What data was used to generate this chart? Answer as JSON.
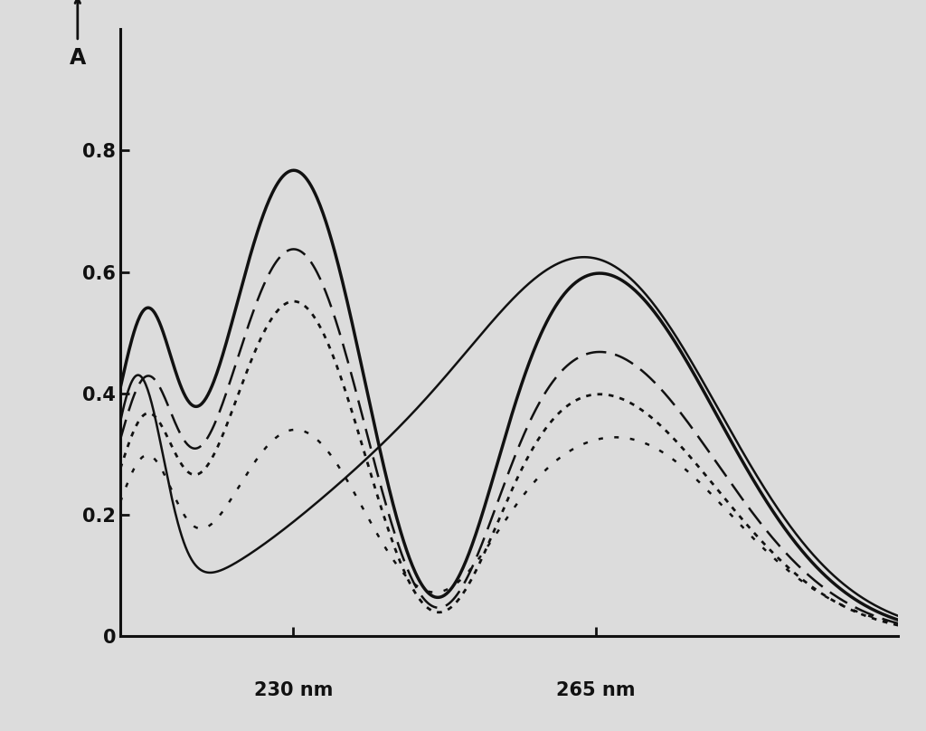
{
  "background_color": "#dcdcdc",
  "xlim": [
    210,
    300
  ],
  "ylim": [
    0,
    1.0
  ],
  "yticks": [
    0,
    0.2,
    0.4,
    0.6,
    0.8
  ],
  "xtick_positions": [
    230,
    265
  ],
  "xtick_labels": [
    "230 nm",
    "265 nm"
  ],
  "ylabel": "A",
  "line_color": "#111111",
  "curve_styles": [
    {
      "lw": 2.5,
      "dashes": null,
      "ls": "solid"
    },
    {
      "lw": 1.8,
      "dashes": [
        9,
        4
      ],
      "ls": "dashed"
    },
    {
      "lw": 2.0,
      "dashes": [
        2,
        2.5
      ],
      "ls": "dotted"
    },
    {
      "lw": 1.8,
      "dashes": null,
      "ls": "solid"
    },
    {
      "lw": 1.8,
      "dashes": [
        2,
        5
      ],
      "ls": "dotted"
    }
  ]
}
